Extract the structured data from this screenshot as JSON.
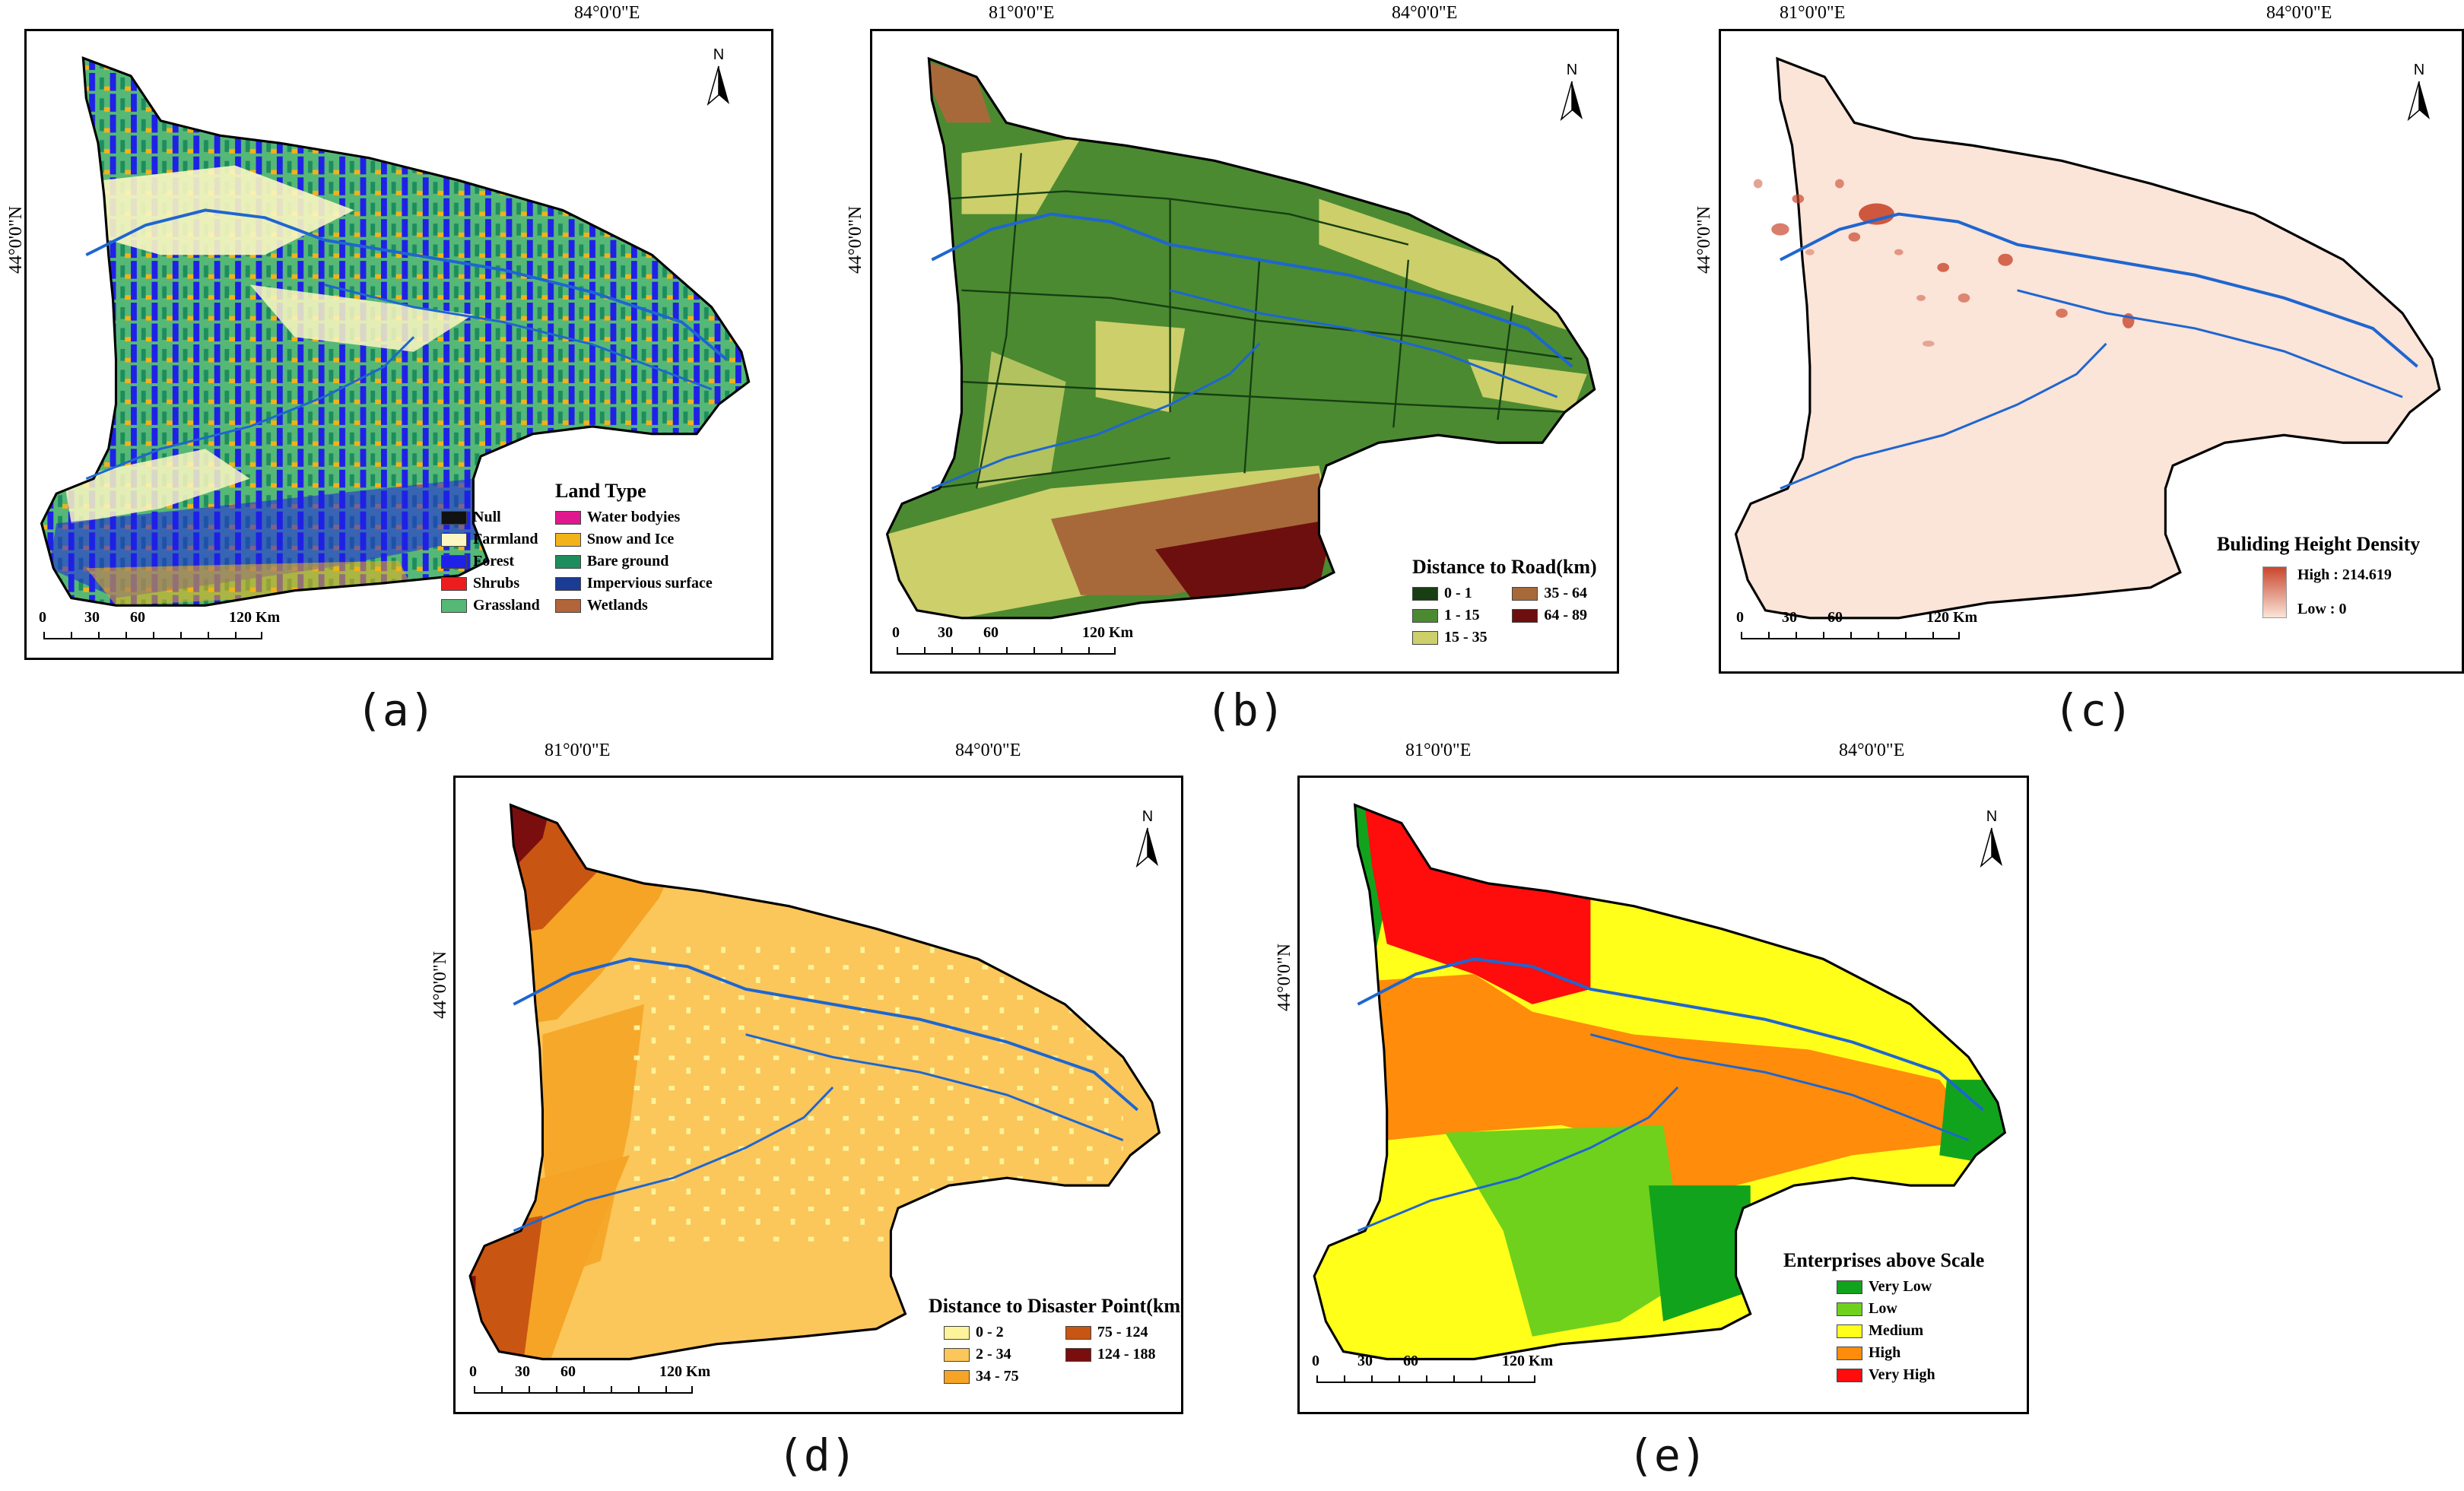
{
  "coordinates": {
    "lon_left": "81°0'0\"E",
    "lon_right": "84°0'0\"E",
    "lat": "44°0'0\"N"
  },
  "north": "N",
  "scale": {
    "t0": "0",
    "t1": "30",
    "t2": "60",
    "t3": "120 Km"
  },
  "panels": [
    {
      "caption": "(a)",
      "legend_title": "Land Type",
      "legend_items": [
        {
          "label": "Null",
          "color": "#111111"
        },
        {
          "label": "Water bodyies",
          "color": "#e0188e"
        },
        {
          "label": "Farmland",
          "color": "#fbf6c2"
        },
        {
          "label": "Snow and Ice",
          "color": "#f2b21a"
        },
        {
          "label": "Forest",
          "color": "#1f21e6"
        },
        {
          "label": "Bare ground",
          "color": "#1d8d5e"
        },
        {
          "label": "Shrubs",
          "color": "#ee1d1d"
        },
        {
          "label": "Impervious surface",
          "color": "#1b3c93"
        },
        {
          "label": "Grassland",
          "color": "#56b876"
        },
        {
          "label": "Wetlands",
          "color": "#b2643a"
        }
      ]
    },
    {
      "caption": "(b)",
      "legend_title": "Distance to Road(km)",
      "legend_items": [
        {
          "label": "0 - 1",
          "color": "#173f12"
        },
        {
          "label": "35 - 64",
          "color": "#a8693a"
        },
        {
          "label": "1 - 15",
          "color": "#4b8a31"
        },
        {
          "label": "64 - 89",
          "color": "#6e0f0f"
        },
        {
          "label": "15 - 35",
          "color": "#cccf6a"
        }
      ]
    },
    {
      "caption": "(c)",
      "legend_title": "Buliding Height Density",
      "legend_high": "High : 214.619",
      "legend_low": "Low : 0",
      "color_high": "#c9472e",
      "color_low": "#fbe4d8"
    },
    {
      "caption": "(d)",
      "legend_title": "Distance to Disaster Point(km)",
      "legend_items": [
        {
          "label": "0 - 2",
          "color": "#fdf39a"
        },
        {
          "label": "75 - 124",
          "color": "#c95512"
        },
        {
          "label": "2 - 34",
          "color": "#fbc65a"
        },
        {
          "label": "124 - 188",
          "color": "#7a0e0e"
        },
        {
          "label": "34 - 75",
          "color": "#f5a426"
        }
      ]
    },
    {
      "caption": "(e)",
      "legend_title": "Enterprises above Scale",
      "legend_items": [
        {
          "label": "Very Low",
          "color": "#12a31c"
        },
        {
          "label": "Low",
          "color": "#6fd11c"
        },
        {
          "label": "Medium",
          "color": "#ffff1a"
        },
        {
          "label": "High",
          "color": "#ff8c0a"
        },
        {
          "label": "Very High",
          "color": "#ff0c0c"
        }
      ]
    }
  ]
}
